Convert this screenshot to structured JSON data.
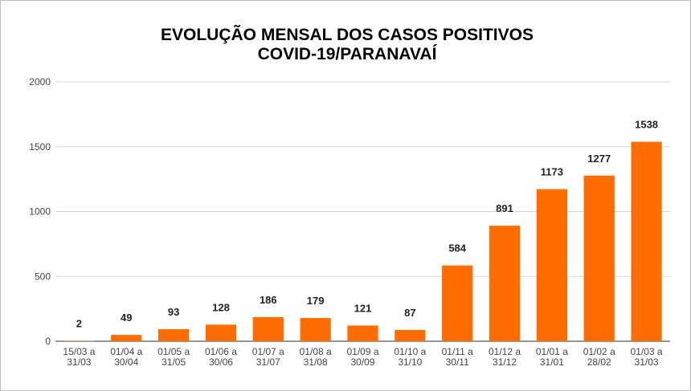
{
  "chart_data": {
    "type": "bar",
    "title_lines": [
      "EVOLUÇÃO MENSAL DOS CASOS POSITIVOS",
      "COVID-19/PARANAVAÍ"
    ],
    "categories": [
      [
        "15/03 a",
        "31/03"
      ],
      [
        "01/04 a",
        "30/04"
      ],
      [
        "01/05 a",
        "31/05"
      ],
      [
        "01/06 a",
        "30/06"
      ],
      [
        "01/07 a",
        "31/07"
      ],
      [
        "01/08 a",
        "31/08"
      ],
      [
        "01/09 a",
        "30/09"
      ],
      [
        "01/10 a",
        "31/10"
      ],
      [
        "01/11 a",
        "30/11"
      ],
      [
        "01/12 a",
        "31/12"
      ],
      [
        "01/01 a",
        "31/01"
      ],
      [
        "01/02 a",
        "28/02"
      ],
      [
        "01/03 a",
        "31/03"
      ]
    ],
    "values": [
      2,
      49,
      93,
      128,
      186,
      179,
      121,
      87,
      584,
      891,
      1173,
      1277,
      1538
    ],
    "ylim": [
      0,
      2000
    ],
    "yticks": [
      0,
      500,
      1000,
      1500,
      2000
    ],
    "grid": true,
    "legend": "none",
    "bar_color": "#ff6d01",
    "xlabel": "",
    "ylabel": ""
  }
}
